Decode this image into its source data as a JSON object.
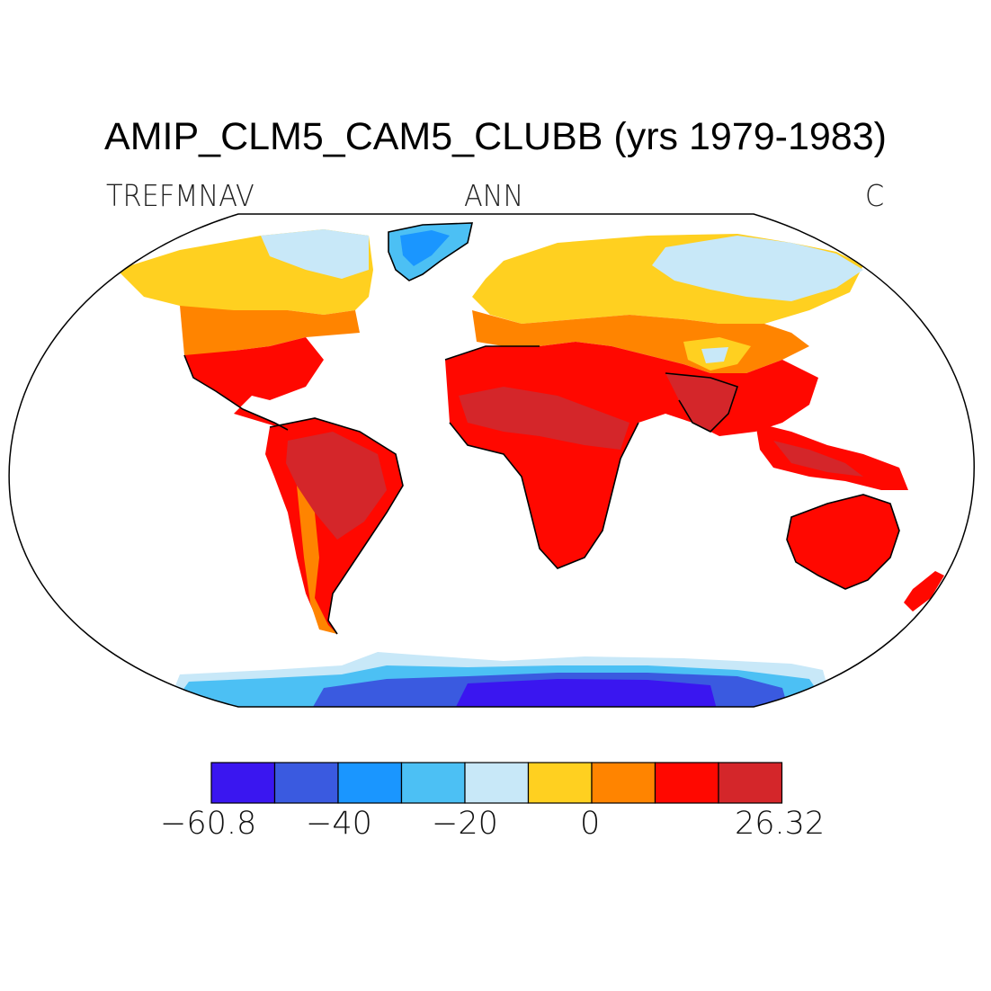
{
  "title": "AMIP_CLM5_CAM5_CLUBB (yrs 1979-1983)",
  "left_label": "TREFMNAV",
  "center_label": "ANN",
  "right_label": "C",
  "colorbar": {
    "colors": [
      "#3a16f0",
      "#3a5ae0",
      "#1a96ff",
      "#4cc0f4",
      "#c8e8f8",
      "#ffd020",
      "#ff8400",
      "#ff0800",
      "#d4262a"
    ],
    "labels": [
      "−60.8",
      "−40",
      "−20",
      "0",
      "26.32"
    ]
  }
}
